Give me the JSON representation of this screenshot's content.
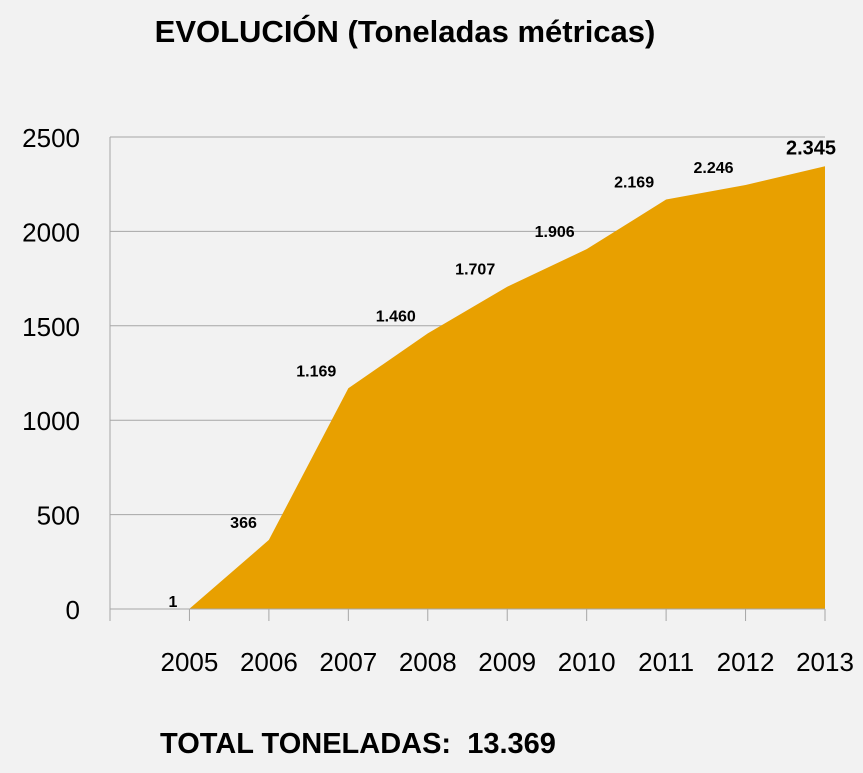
{
  "chart_data": {
    "type": "area",
    "title": "EVOLUCIÓN (Toneladas métricas)",
    "categories": [
      "2005",
      "2006",
      "2007",
      "2008",
      "2009",
      "2010",
      "2011",
      "2012",
      "2013"
    ],
    "values": [
      1,
      366,
      1169,
      1460,
      1707,
      1906,
      2169,
      2246,
      2345
    ],
    "data_labels": [
      "1",
      "366",
      "1.169",
      "1.460",
      "1.707",
      "1.906",
      "2.169",
      "2.246",
      "2.345"
    ],
    "ylim": [
      0,
      2500
    ],
    "yticks": [
      0,
      500,
      1000,
      1500,
      2000,
      2500
    ],
    "xlabel": "",
    "ylabel": "",
    "grid": true,
    "legend": "none",
    "fill_color": "#e8a000"
  },
  "footer": {
    "total_label": "TOTAL TONELADAS:",
    "total_value": "13.369"
  }
}
